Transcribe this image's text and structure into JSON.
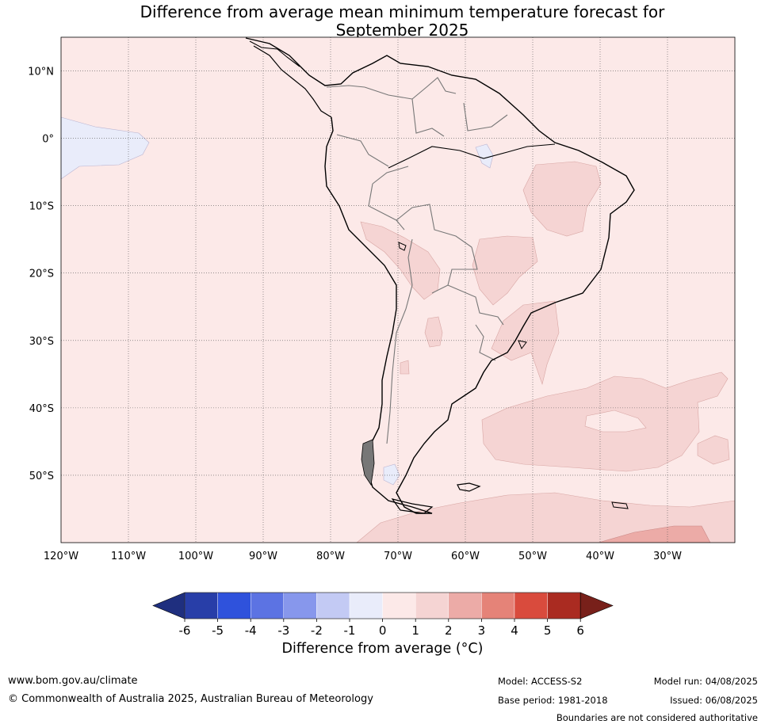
{
  "title": {
    "line1": "Difference from average mean minimum temperature forecast for",
    "line2": "September 2025"
  },
  "map": {
    "lat_labels": [
      "10°N",
      "0°",
      "10°S",
      "20°S",
      "30°S",
      "40°S",
      "50°S"
    ],
    "lon_labels": [
      "120°W",
      "110°W",
      "100°W",
      "90°W",
      "80°W",
      "70°W",
      "60°W",
      "50°W",
      "40°W",
      "30°W"
    ],
    "extent": {
      "lon": [
        -120,
        -20
      ],
      "lat": [
        -60,
        15
      ]
    }
  },
  "colorbar": {
    "ticks": [
      "-6",
      "-5",
      "-4",
      "-3",
      "-2",
      "-1",
      "0",
      "1",
      "2",
      "3",
      "4",
      "5",
      "6"
    ],
    "colors": [
      "#1f2f7f",
      "#283ea8",
      "#2f52dc",
      "#5c73e3",
      "#8797ec",
      "#c3caf4",
      "#e9ecfa",
      "#fce9e8",
      "#f5d4d3",
      "#ecaba7",
      "#e58378",
      "#d94b3d",
      "#aa2b21",
      "#78201a"
    ],
    "label": "Difference from average (°C)"
  },
  "footer": {
    "website": "www.bom.gov.au/climate",
    "copyright": "© Commonwealth of Australia 2025, Australian Bureau of Meteorology",
    "model": "Model: ACCESS-S2",
    "base_period": "Base period: 1981-2018",
    "model_run": "Model run: 04/08/2025",
    "issued": "Issued: 06/08/2025",
    "disclaimer": "Boundaries are not considered authoritative"
  }
}
